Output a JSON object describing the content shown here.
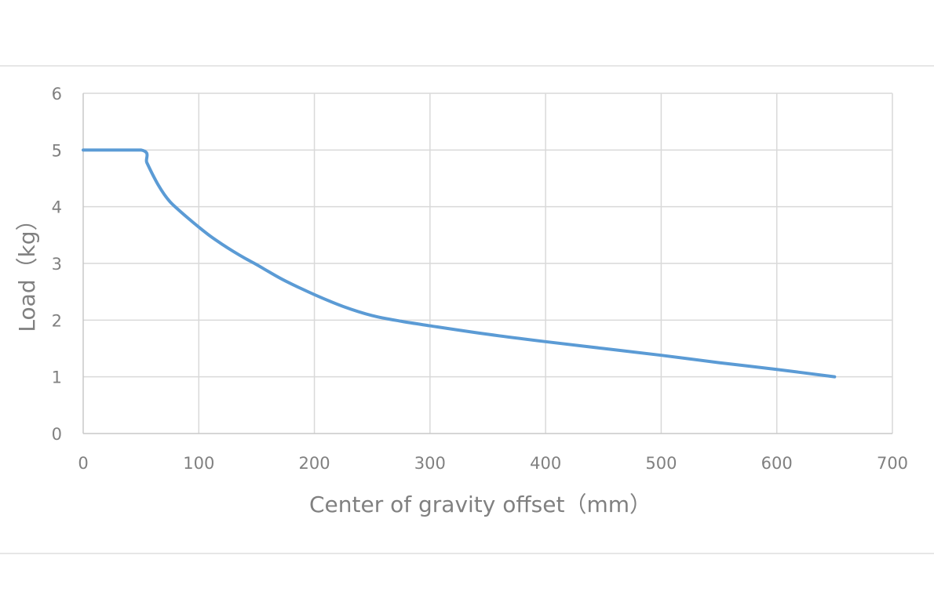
{
  "chart_data": {
    "type": "line",
    "title": "",
    "xlabel": "Center of gravity offset（mm）",
    "ylabel": "Load（kg）",
    "xlim": [
      0,
      700
    ],
    "ylim": [
      0,
      6
    ],
    "x_ticks": [
      "0",
      "100",
      "200",
      "300",
      "400",
      "500",
      "600",
      "700"
    ],
    "y_ticks": [
      "0",
      "1",
      "2",
      "3",
      "4",
      "5",
      "6"
    ],
    "grid": true,
    "legend": "none",
    "series": [
      {
        "color": "#5b9bd5",
        "x": [
          0,
          50,
          55,
          60,
          65,
          70,
          75,
          80,
          90,
          100,
          110,
          120,
          130,
          140,
          150,
          160,
          175,
          200,
          225,
          250,
          275,
          300,
          350,
          400,
          450,
          500,
          550,
          600,
          650
        ],
        "y": [
          5,
          5,
          4.78,
          4.57,
          4.38,
          4.22,
          4.09,
          3.99,
          3.81,
          3.64,
          3.48,
          3.34,
          3.21,
          3.09,
          2.98,
          2.86,
          2.69,
          2.45,
          2.24,
          2.08,
          1.98,
          1.9,
          1.75,
          1.62,
          1.5,
          1.38,
          1.25,
          1.13,
          1.0
        ]
      }
    ]
  }
}
